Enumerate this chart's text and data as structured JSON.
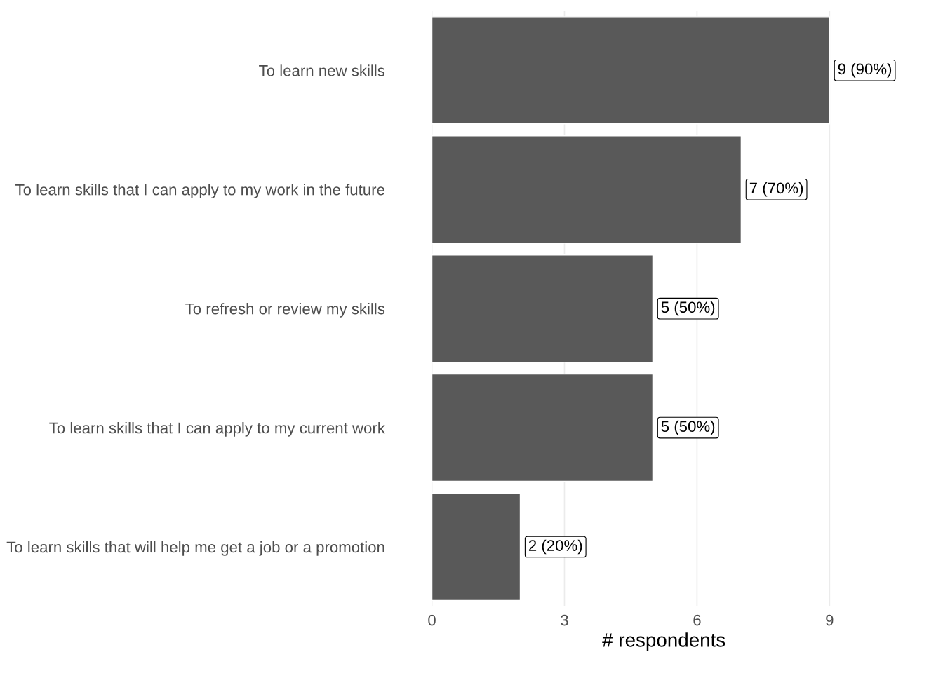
{
  "chart_data": {
    "type": "bar",
    "orientation": "horizontal",
    "xlabel": "# respondents",
    "categories": [
      "To learn new skills",
      "To learn skills that I can apply to my work in the future",
      "To refresh or review my skills",
      "To learn skills that I can apply to my current work",
      "To learn skills that will help me get a job or a promotion"
    ],
    "values": [
      9,
      7,
      5,
      5,
      2
    ],
    "value_labels": [
      "9 (90%)",
      "7 (70%)",
      "5 (50%)",
      "5 (50%)",
      "2 (20%)"
    ],
    "color": "#595959",
    "xlim": [
      0,
      10.5
    ],
    "xticks": [
      0,
      3,
      6,
      9
    ],
    "grid": "x",
    "legend": false
  }
}
